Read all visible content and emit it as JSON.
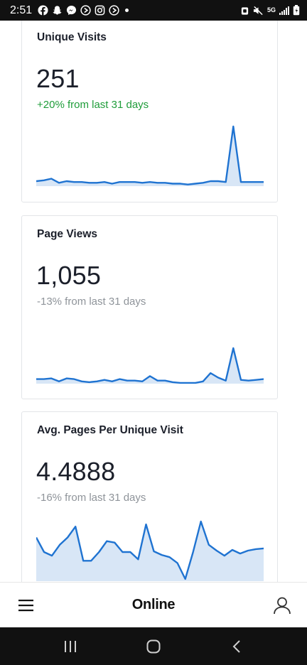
{
  "status_bar": {
    "time": "2:51",
    "network": "5G",
    "left_icons": [
      "facebook-icon",
      "snapchat-icon",
      "messenger-icon",
      "play-icon",
      "instagram-icon",
      "play-icon",
      "notification-dot"
    ],
    "right_icons": [
      "alarm-icon",
      "mute-icon",
      "5g-icon",
      "signal-icon",
      "battery-icon"
    ]
  },
  "cards": [
    {
      "title": "Unique Visits",
      "value": "251",
      "delta": "+20% from last 31 days",
      "delta_direction": "up",
      "delta_color": "#1f9d3a"
    },
    {
      "title": "Page Views",
      "value": "1,055",
      "delta": "-13% from last 31 days",
      "delta_direction": "down",
      "delta_color": "#8f949a"
    },
    {
      "title": "Avg. Pages Per Unique Visit",
      "value": "4.4888",
      "delta": "-16% from last 31 days",
      "delta_direction": "down",
      "delta_color": "#8f949a"
    }
  ],
  "chart_data": [
    {
      "type": "area",
      "series": [
        {
          "values": [
            6,
            7,
            9,
            4,
            6,
            5,
            5,
            4,
            4,
            5,
            3,
            5,
            5,
            5,
            4,
            5,
            4,
            4,
            3,
            3,
            2,
            3,
            4,
            6,
            6,
            5,
            72,
            5,
            5,
            5,
            5
          ]
        }
      ]
    },
    {
      "type": "area",
      "series": [
        {
          "values": [
            6,
            6,
            7,
            3,
            7,
            6,
            3,
            2,
            3,
            5,
            3,
            6,
            4,
            4,
            3,
            10,
            4,
            4,
            2,
            1,
            1,
            1,
            3,
            14,
            8,
            4,
            47,
            5,
            4,
            5,
            6
          ]
        }
      ]
    },
    {
      "type": "area",
      "series": [
        {
          "values": [
            6.0,
            4.0,
            3.5,
            5.0,
            6.0,
            7.5,
            2.8,
            2.8,
            4.0,
            5.5,
            5.3,
            4.0,
            4.0,
            3.0,
            7.8,
            4.1,
            3.6,
            3.3,
            2.5,
            0.3,
            4.0,
            8.2,
            5.0,
            4.2,
            3.5,
            4.3,
            3.8,
            4.2,
            4.4,
            4.5
          ]
        }
      ]
    }
  ],
  "colors": {
    "line": "#1f73d1",
    "fill": "#d8e6f6",
    "status_bar": "#111111",
    "text": "#1b1f2a"
  },
  "bottom_nav": {
    "title": "Online",
    "menu_icon": "hamburger-menu-icon",
    "profile_icon": "user-profile-icon"
  },
  "system_nav": {
    "buttons": [
      "recent-apps-icon",
      "home-icon",
      "back-icon"
    ]
  }
}
